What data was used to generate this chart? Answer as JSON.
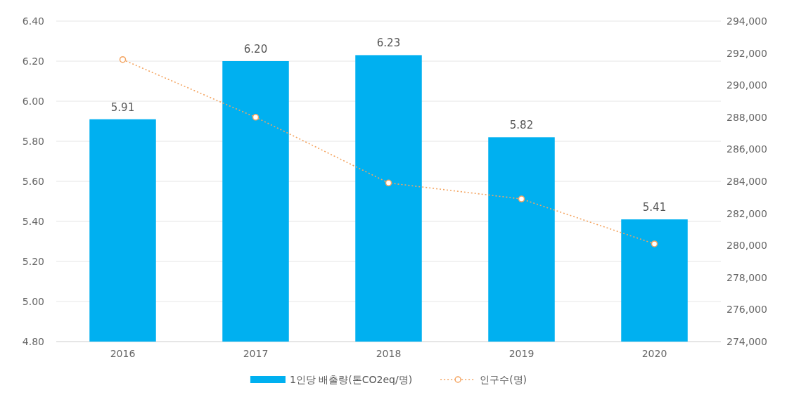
{
  "chart_data": {
    "type": "bar",
    "categories": [
      "2016",
      "2017",
      "2018",
      "2019",
      "2020"
    ],
    "series": [
      {
        "name": "1인당 배출량(톤CO2eq/명)",
        "color": "#00b0f0",
        "values": [
          5.91,
          6.2,
          6.23,
          5.82,
          5.41
        ],
        "value_labels": [
          "5.91",
          "6.20",
          "6.23",
          "5.82",
          "5.41"
        ]
      },
      {
        "name": "인구수(명)",
        "type": "line",
        "axis": "y2",
        "color": "#f4a460",
        "marker": "circle",
        "line_style": "dotted",
        "values": [
          291600,
          288000,
          283900,
          282900,
          280100
        ]
      }
    ],
    "ylim": [
      4.8,
      6.4
    ],
    "yticks": [
      {
        "value": 4.8,
        "label": "4.80"
      },
      {
        "value": 5.0,
        "label": "5.00"
      },
      {
        "value": 5.2,
        "label": "5.20"
      },
      {
        "value": 5.4,
        "label": "5.40"
      },
      {
        "value": 5.6,
        "label": "5.60"
      },
      {
        "value": 5.8,
        "label": "5.80"
      },
      {
        "value": 6.0,
        "label": "6.00"
      },
      {
        "value": 6.2,
        "label": "6.20"
      },
      {
        "value": 6.4,
        "label": "6.40"
      }
    ],
    "y2lim": [
      274000,
      294000
    ],
    "y2ticks": [
      {
        "value": 274000,
        "label": "274,000"
      },
      {
        "value": 276000,
        "label": "276,000"
      },
      {
        "value": 278000,
        "label": "278,000"
      },
      {
        "value": 280000,
        "label": "280,000"
      },
      {
        "value": 282000,
        "label": "282,000"
      },
      {
        "value": 284000,
        "label": "284,000"
      },
      {
        "value": 286000,
        "label": "286,000"
      },
      {
        "value": 288000,
        "label": "288,000"
      },
      {
        "value": 290000,
        "label": "290,000"
      },
      {
        "value": 292000,
        "label": "292,000"
      },
      {
        "value": 294000,
        "label": "294,000"
      }
    ],
    "grid": "y",
    "legend": "bottom"
  }
}
